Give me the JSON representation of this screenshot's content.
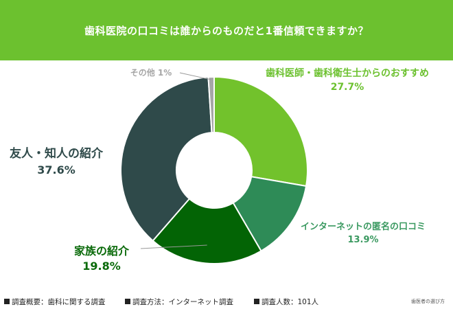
{
  "header": {
    "title": "歯科医院の口コミは誰からのものだと1番信頼できますか？"
  },
  "chart_data": {
    "type": "pie",
    "title": "歯科医院の口コミは誰からのものだと1番信頼できますか？",
    "donut": true,
    "slices": [
      {
        "label": "歯科医師・歯科衛生士からのおすすめ",
        "value": 27.7,
        "display": "27.7%",
        "color": "#72c22c"
      },
      {
        "label": "インターネットの匿名の口コミ",
        "value": 13.9,
        "display": "13.9%",
        "color": "#2e8b57"
      },
      {
        "label": "家族の紹介",
        "value": 19.8,
        "display": "19.8%",
        "color": "#036405"
      },
      {
        "label": "友人・知人の紹介",
        "value": 37.6,
        "display": "37.6%",
        "color": "#2f4a4a"
      },
      {
        "label": "その他",
        "value": 1,
        "display": "1%",
        "color": "#a6a6a6"
      }
    ]
  },
  "footer": {
    "note1": "調査概要：歯科に関する調査",
    "note2": "調査方法：インターネット調査",
    "note3": "調査人数：101人",
    "brand": "歯医者の選び方"
  }
}
